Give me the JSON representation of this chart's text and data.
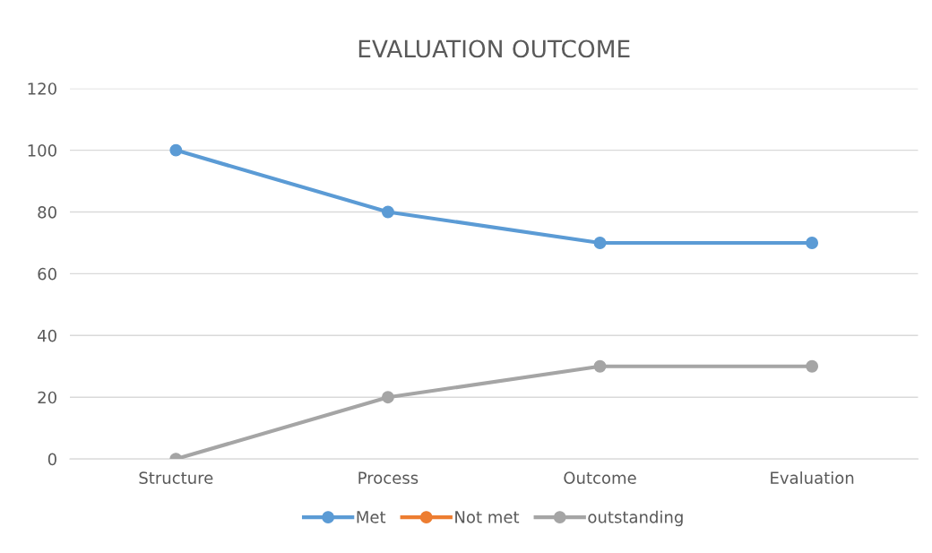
{
  "chart_data": {
    "type": "line",
    "title": "EVALUATION OUTCOME",
    "categories": [
      "Structure",
      "Process",
      "Outcome",
      "Evaluation"
    ],
    "series": [
      {
        "name": "Met",
        "color": "#5b9bd5",
        "values": [
          100,
          80,
          70,
          70
        ]
      },
      {
        "name": "Not met",
        "color": "#ed7d31",
        "values": [
          null,
          null,
          null,
          null
        ]
      },
      {
        "name": "outstanding",
        "color": "#a5a5a5",
        "values": [
          0,
          20,
          30,
          30
        ]
      }
    ],
    "ylim": [
      0,
      120
    ],
    "yticks": [
      0,
      20,
      40,
      60,
      80,
      100,
      120
    ],
    "grid": "y",
    "legend": "bottom",
    "marker": "circle",
    "line_style": "solid"
  }
}
